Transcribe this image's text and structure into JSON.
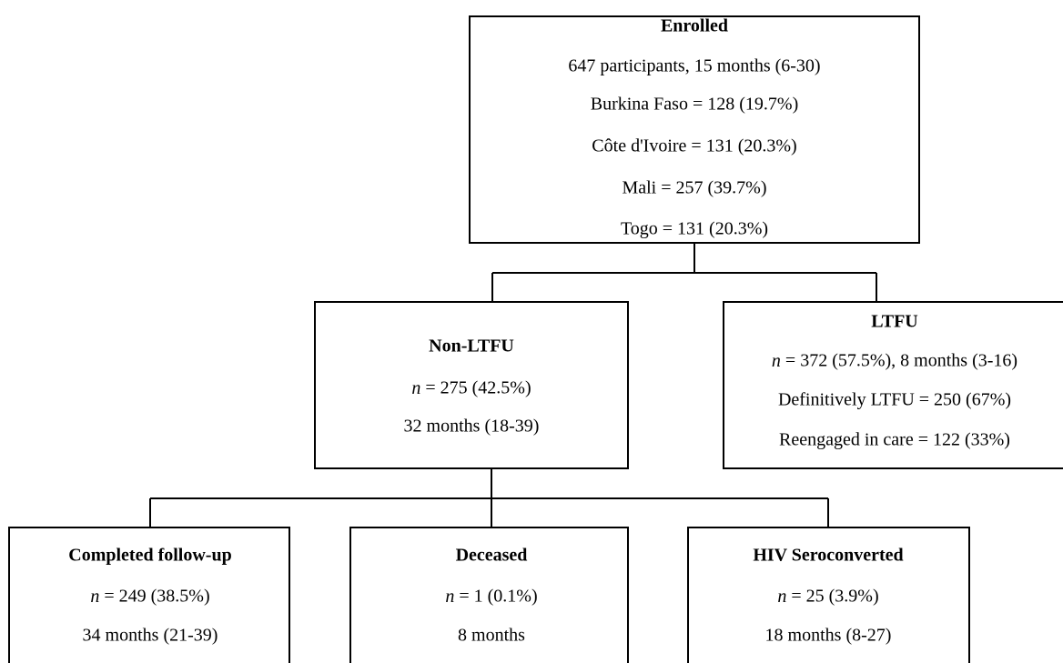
{
  "nodes": [
    {
      "title": "Enrolled",
      "lines": [
        "647 participants, 15 months (6-30)",
        "Burkina Faso = 128 (19.7%)",
        "Côte d'Ivoire = 131 (20.3%)",
        "Mali = 257 (39.7%)",
        "Togo = 131 (20.3%)"
      ]
    },
    {
      "title": "Non-LTFU",
      "lines": [
        "n = 275 (42.5%)",
        "32 months (18-39)"
      ]
    },
    {
      "title": "LTFU",
      "lines": [
        "n = 372 (57.5%), 8 months (3-16)",
        "Definitively LTFU = 250 (67%)",
        "Reengaged in care = 122 (33%)"
      ]
    },
    {
      "title": "Completed follow-up",
      "lines": [
        "n = 249 (38.5%)",
        "34 months (21-39)"
      ]
    },
    {
      "title": "Deceased",
      "lines": [
        "n = 1 (0.1%)",
        "8 months"
      ]
    },
    {
      "title": "HIV Seroconverted",
      "lines": [
        "n = 25 (3.9%)",
        "18 months (8-27)"
      ]
    }
  ]
}
